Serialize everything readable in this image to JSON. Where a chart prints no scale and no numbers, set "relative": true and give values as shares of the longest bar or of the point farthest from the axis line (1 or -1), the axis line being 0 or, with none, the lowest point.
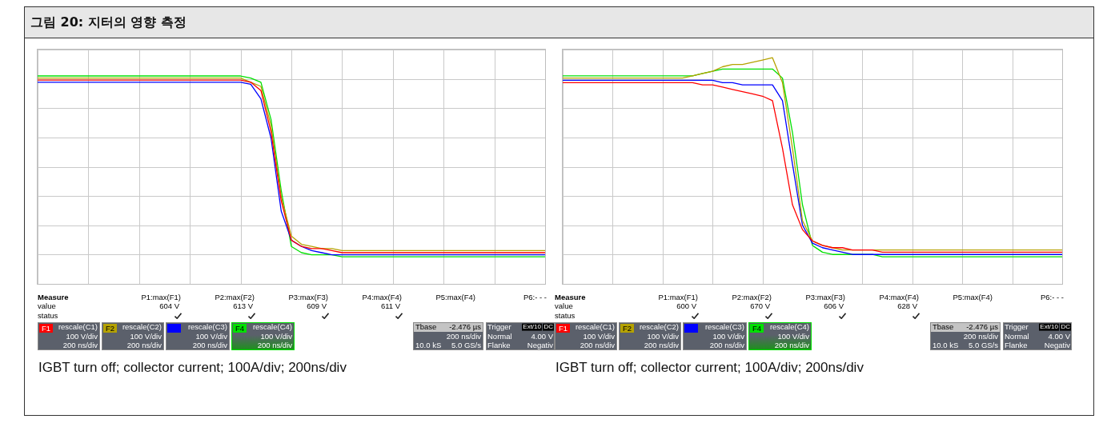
{
  "chart_data": [
    {
      "type": "line",
      "title": "그림 20: 지터의 영향 측정",
      "relative": true,
      "grid": true,
      "legend": "bottom",
      "categories": [
        null,
        null,
        null,
        null,
        null,
        null,
        null,
        null,
        null,
        null,
        null,
        null,
        null,
        null,
        null,
        null,
        null,
        null,
        null,
        null,
        null,
        null,
        null,
        null,
        null,
        null,
        null,
        null,
        null,
        null,
        null,
        null,
        null,
        null,
        null,
        null,
        null,
        null,
        null,
        null,
        null,
        null,
        null,
        null,
        null,
        null,
        null,
        null,
        null,
        null,
        null
      ],
      "series": [
        {
          "name": "F1",
          "color": "#ff0000",
          "values": [
            0.98,
            0.98,
            0.98,
            0.98,
            0.98,
            0.98,
            0.98,
            0.98,
            0.98,
            0.98,
            0.98,
            0.98,
            0.98,
            0.98,
            0.98,
            0.98,
            0.98,
            0.98,
            0.98,
            0.98,
            0.98,
            0.97,
            0.93,
            0.73,
            0.4,
            0.21,
            0.18,
            0.17,
            0.17,
            0.16,
            0.15,
            0.15,
            0.15,
            0.15,
            0.15,
            0.15,
            0.15,
            0.15,
            0.15,
            0.15,
            0.15,
            0.15,
            0.15,
            0.15,
            0.15,
            0.15,
            0.15,
            0.15,
            0.15,
            0.15,
            0.15
          ]
        },
        {
          "name": "F2",
          "color": "#b5a200",
          "values": [
            0.99,
            0.99,
            0.99,
            0.99,
            0.99,
            0.99,
            0.99,
            0.99,
            0.99,
            0.99,
            0.99,
            0.99,
            0.99,
            0.99,
            0.99,
            0.99,
            0.99,
            0.99,
            0.99,
            0.99,
            0.99,
            0.97,
            0.95,
            0.76,
            0.42,
            0.23,
            0.19,
            0.18,
            0.17,
            0.17,
            0.16,
            0.16,
            0.16,
            0.16,
            0.16,
            0.16,
            0.16,
            0.16,
            0.16,
            0.16,
            0.16,
            0.16,
            0.16,
            0.16,
            0.16,
            0.16,
            0.16,
            0.16,
            0.16,
            0.16,
            0.16
          ]
        },
        {
          "color": "#0000ff",
          "values": [
            0.97,
            0.97,
            0.97,
            0.97,
            0.97,
            0.97,
            0.97,
            0.97,
            0.97,
            0.97,
            0.97,
            0.97,
            0.97,
            0.97,
            0.97,
            0.97,
            0.97,
            0.97,
            0.97,
            0.97,
            0.97,
            0.96,
            0.89,
            0.7,
            0.35,
            0.21,
            0.18,
            0.16,
            0.15,
            0.14,
            0.14,
            0.14,
            0.14,
            0.14,
            0.14,
            0.14,
            0.14,
            0.14,
            0.14,
            0.14,
            0.14,
            0.14,
            0.14,
            0.14,
            0.14,
            0.14,
            0.14,
            0.14,
            0.14,
            0.14,
            0.14
          ]
        },
        {
          "name": "F4",
          "color": "#00e000",
          "values": [
            1.0,
            1.0,
            1.0,
            1.0,
            1.0,
            1.0,
            1.0,
            1.0,
            1.0,
            1.0,
            1.0,
            1.0,
            1.0,
            1.0,
            1.0,
            1.0,
            1.0,
            1.0,
            1.0,
            1.0,
            1.0,
            0.99,
            0.97,
            0.79,
            0.45,
            0.18,
            0.15,
            0.14,
            0.14,
            0.14,
            0.13,
            0.13,
            0.13,
            0.13,
            0.13,
            0.13,
            0.13,
            0.13,
            0.13,
            0.13,
            0.13,
            0.13,
            0.13,
            0.13,
            0.13,
            0.13,
            0.13,
            0.13,
            0.13,
            0.13,
            0.13
          ]
        }
      ],
      "annotations": [
        "Measure",
        "value",
        "status",
        "P1:max(F1)",
        "P2:max(F2)",
        "P3:max(F3)",
        "P4:max(F4)",
        "P5:max(F4)",
        "P6:- - -",
        "604 V",
        "613 V",
        "609 V",
        "611 V",
        "rescale(C1)",
        "100 V/div",
        "200 ns/div",
        "rescale(C2)",
        "100 V/div",
        "200 ns/div",
        "rescale(C3)",
        "100 V/div",
        "200 ns/div",
        "rescale(C4)",
        "100 V/div",
        "200 ns/div",
        "Tbase",
        "-2.476 µs",
        "200 ns/div",
        "10.0 kS",
        "5.0 GS/s",
        "Trigger",
        "Ext/10",
        "DC",
        "Normal",
        "4.00 V",
        "Flanke",
        "Negativ",
        "IGBT turn off; collector current; 100A/div; 200ns/div"
      ]
    },
    {
      "type": "line",
      "relative": true,
      "grid": true,
      "legend": "bottom",
      "categories": [
        null,
        null,
        null,
        null,
        null,
        null,
        null,
        null,
        null,
        null,
        null,
        null,
        null,
        null,
        null,
        null,
        null,
        null,
        null,
        null,
        null,
        null,
        null,
        null,
        null,
        null,
        null,
        null,
        null,
        null,
        null,
        null,
        null,
        null,
        null,
        null,
        null,
        null,
        null,
        null,
        null,
        null,
        null,
        null,
        null,
        null,
        null,
        null,
        null,
        null,
        null
      ],
      "series": [
        {
          "name": "F1",
          "color": "#ff0000",
          "values": [
            0.89,
            0.89,
            0.89,
            0.89,
            0.89,
            0.89,
            0.89,
            0.89,
            0.89,
            0.89,
            0.89,
            0.89,
            0.89,
            0.89,
            0.88,
            0.88,
            0.87,
            0.86,
            0.85,
            0.84,
            0.83,
            0.81,
            0.6,
            0.35,
            0.24,
            0.19,
            0.17,
            0.16,
            0.16,
            0.15,
            0.15,
            0.15,
            0.14,
            0.14,
            0.14,
            0.14,
            0.14,
            0.14,
            0.14,
            0.14,
            0.14,
            0.14,
            0.14,
            0.14,
            0.14,
            0.14,
            0.14,
            0.14,
            0.14,
            0.14,
            0.14
          ]
        },
        {
          "name": "F2",
          "color": "#b5a200",
          "values": [
            0.91,
            0.91,
            0.91,
            0.91,
            0.91,
            0.91,
            0.91,
            0.91,
            0.91,
            0.91,
            0.91,
            0.91,
            0.91,
            0.92,
            0.93,
            0.94,
            0.96,
            0.97,
            0.97,
            0.98,
            0.99,
            1.0,
            0.89,
            0.6,
            0.28,
            0.19,
            0.17,
            0.16,
            0.15,
            0.15,
            0.15,
            0.15,
            0.15,
            0.15,
            0.15,
            0.15,
            0.15,
            0.15,
            0.15,
            0.15,
            0.15,
            0.15,
            0.15,
            0.15,
            0.15,
            0.15,
            0.15,
            0.15,
            0.15,
            0.15,
            0.15
          ]
        },
        {
          "color": "#0000ff",
          "values": [
            0.9,
            0.9,
            0.9,
            0.9,
            0.9,
            0.9,
            0.9,
            0.9,
            0.9,
            0.9,
            0.9,
            0.9,
            0.9,
            0.9,
            0.9,
            0.9,
            0.89,
            0.89,
            0.88,
            0.88,
            0.88,
            0.88,
            0.81,
            0.53,
            0.26,
            0.18,
            0.16,
            0.15,
            0.14,
            0.13,
            0.13,
            0.13,
            0.13,
            0.13,
            0.13,
            0.13,
            0.13,
            0.13,
            0.13,
            0.13,
            0.13,
            0.13,
            0.13,
            0.13,
            0.13,
            0.13,
            0.13,
            0.13,
            0.13,
            0.13,
            0.13
          ]
        },
        {
          "name": "F4",
          "color": "#00e000",
          "values": [
            0.92,
            0.92,
            0.92,
            0.92,
            0.92,
            0.92,
            0.92,
            0.92,
            0.92,
            0.92,
            0.92,
            0.92,
            0.92,
            0.92,
            0.93,
            0.94,
            0.95,
            0.95,
            0.95,
            0.95,
            0.95,
            0.95,
            0.91,
            0.67,
            0.35,
            0.17,
            0.14,
            0.13,
            0.13,
            0.13,
            0.13,
            0.13,
            0.12,
            0.12,
            0.12,
            0.12,
            0.12,
            0.12,
            0.12,
            0.12,
            0.12,
            0.12,
            0.12,
            0.12,
            0.12,
            0.12,
            0.12,
            0.12,
            0.12,
            0.12,
            0.12
          ]
        }
      ],
      "annotations": [
        "Measure",
        "value",
        "status",
        "P1:max(F1)",
        "P2:max(F2)",
        "P3:max(F3)",
        "P4:max(F4)",
        "P5:max(F4)",
        "P6:- - -",
        "600 V",
        "670 V",
        "606 V",
        "628 V",
        "rescale(C1)",
        "100 V/div",
        "200 ns/div",
        "rescale(C2)",
        "100 V/div",
        "200 ns/div",
        "rescale(C3)",
        "100 V/div",
        "200 ns/div",
        "rescale(C4)",
        "100 V/div",
        "200 ns/div",
        "Tbase",
        "-2.476 µs",
        "200 ns/div",
        "10.0 kS",
        "5.0 GS/s",
        "Trigger",
        "Ext/10",
        "DC",
        "Normal",
        "4.00 V",
        "Flanke",
        "Negativ",
        "IGBT turn off; collector current; 100A/div; 200ns/div"
      ]
    }
  ]
}
